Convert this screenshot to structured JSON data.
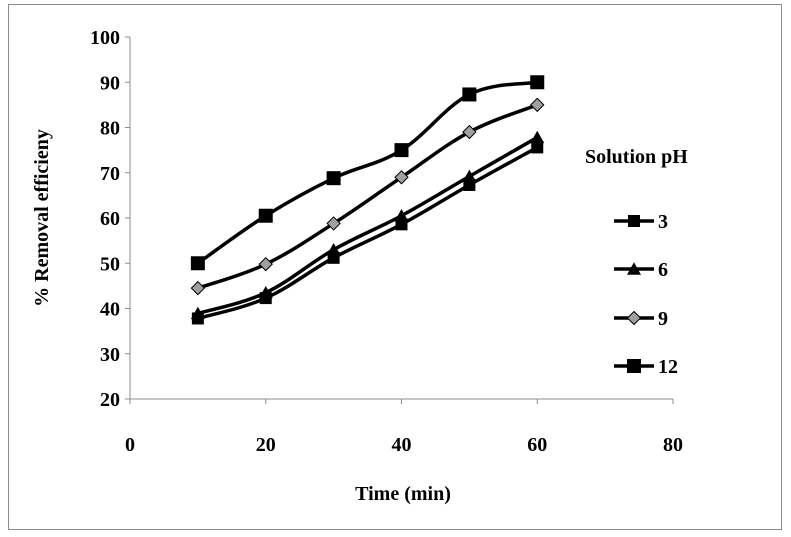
{
  "chart_data": {
    "type": "line",
    "title": "",
    "xlabel": "Time (min)",
    "ylabel": "% Removal efficieny",
    "xlim": [
      0,
      80
    ],
    "ylim": [
      20,
      100
    ],
    "x_ticks": [
      "0",
      "20",
      "40",
      "60",
      "80"
    ],
    "y_ticks": [
      "20",
      "30",
      "40",
      "50",
      "60",
      "70",
      "80",
      "90",
      "100"
    ],
    "grid": false,
    "legend_title": "Solution pH",
    "legend_position": "right",
    "x": [
      10,
      20,
      30,
      40,
      50,
      60
    ],
    "series": [
      {
        "name": "3",
        "marker": "square",
        "marker_color": "#000000",
        "values": [
          37.8,
          42.3,
          51.2,
          58.6,
          67.3,
          75.6
        ]
      },
      {
        "name": "6",
        "marker": "triangle",
        "marker_color": "#000000",
        "values": [
          38.9,
          43.5,
          53.0,
          60.5,
          69.2,
          77.8
        ]
      },
      {
        "name": "9",
        "marker": "diamond",
        "marker_color": "#a0a0a0",
        "values": [
          44.5,
          49.8,
          58.8,
          69.0,
          79.0,
          85.0
        ]
      },
      {
        "name": "12",
        "marker": "square",
        "marker_color": "#000000",
        "values": [
          50.0,
          60.5,
          68.8,
          75.0,
          87.3,
          90.0
        ]
      }
    ],
    "line_color": "#000000"
  }
}
